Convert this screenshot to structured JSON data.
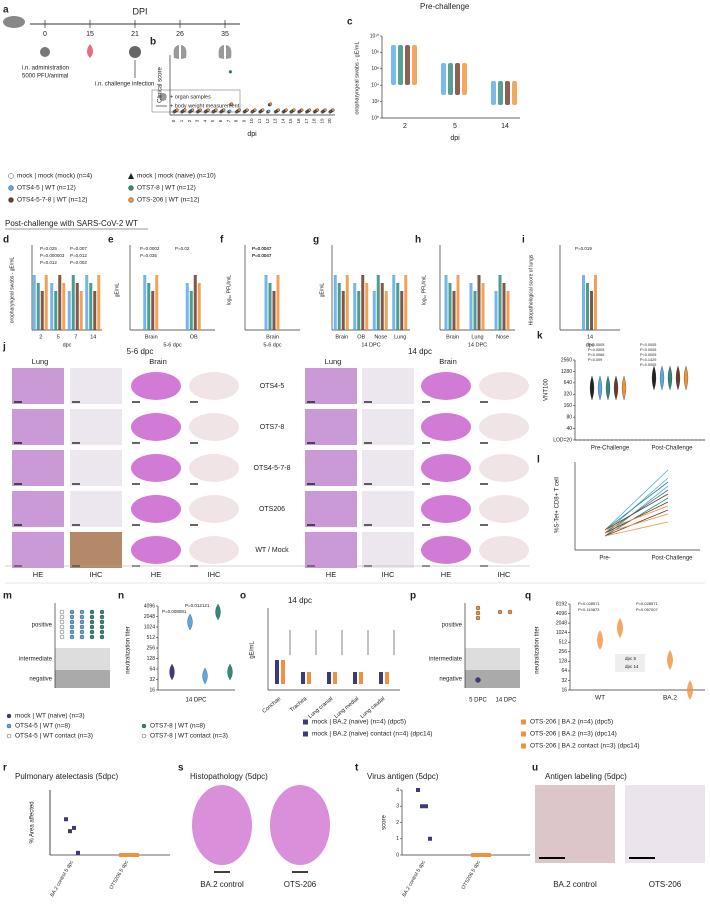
{
  "panels": {
    "a": {
      "letter": "a",
      "axis_title": "DPI",
      "timepoints": [
        "0",
        "15",
        "21",
        "26",
        "35"
      ],
      "notes": [
        "i.n. administration",
        "5000 PFU/animal",
        "i.n. challenge infection"
      ],
      "key": [
        "+ organ samples",
        "+ body weight measurement"
      ],
      "groups": [
        {
          "name": "mock | mock (mock) (n=4)",
          "color": "#ffffff"
        },
        {
          "name": "mock | mock (naive) (n=10)",
          "color": "#222222"
        },
        {
          "name": "OTS4-5 | WT (n=12)",
          "color": "#5aa9e6"
        },
        {
          "name": "OTS7-8 | WT (n=12)",
          "color": "#2e8b7a"
        },
        {
          "name": "OTS4-5-7-8 | WT (n=12)",
          "color": "#6b3a2a"
        },
        {
          "name": "OTS-206 | WT (n=12)",
          "color": "#f0923b"
        }
      ]
    },
    "section_titles": [
      "Pre-challenge",
      "Post-challenge with SARS-CoV-2 WT"
    ],
    "b": {
      "letter": "b",
      "y_title": "Clinical score",
      "x_title": "dpi",
      "xticks": [
        0,
        1,
        2,
        3,
        4,
        5,
        6,
        7,
        8,
        9,
        10,
        11,
        12,
        13,
        14,
        15,
        16,
        17,
        18,
        19,
        20
      ]
    },
    "c": {
      "letter": "c",
      "y_title": "oropharyngeal swabs - gE/mL",
      "x_title": "dpi",
      "categories": [
        "2",
        "5",
        "14"
      ],
      "log": true,
      "ylim": [
        1,
        10000000000
      ],
      "yticks": [
        {
          "value": 10000000000,
          "label": "10¹⁰"
        },
        {
          "value": 100000000,
          "label": "10⁸"
        },
        {
          "value": 1000000,
          "label": "10⁶"
        },
        {
          "value": 10000,
          "label": "10⁴"
        },
        {
          "value": 100,
          "label": "10²"
        },
        {
          "value": 1,
          "label": "10⁰"
        }
      ]
    },
    "d": {
      "letter": "d",
      "y_title": "oropharyngeal swabs - gE/mL",
      "x_title": "dpc",
      "categories": [
        "2",
        "5",
        "7",
        "14"
      ],
      "pvalues": [
        "P=0.025",
        "P=0.007",
        "P=0.000003",
        "P=0.012",
        "P=0.012",
        "P=0.002"
      ]
    },
    "e": {
      "letter": "e",
      "y_title": "gE/mL",
      "x_title": "5-6 dpc",
      "categories": [
        "Brain",
        "OB"
      ],
      "pvalues": [
        "P=0.0002",
        "P=0.02",
        "P=0.035"
      ]
    },
    "f": {
      "letter": "f",
      "y_title": "log₁₀ PFU/mL",
      "x_title": "5-6 dpc",
      "categories": [
        "Brain"
      ],
      "pvalues": [
        "P=0.0047",
        "P=0.0047",
        "P=0.0047",
        "P=0.0047"
      ]
    },
    "g": {
      "letter": "g",
      "y_title": "gE/mL",
      "x_title": "14 DPC",
      "categories": [
        "Brain",
        "OB",
        "Nose",
        "Lung"
      ]
    },
    "h": {
      "letter": "h",
      "y_title": "log₁₀ PFU/mL",
      "x_title": "14 DPC",
      "categories": [
        "Brain",
        "Lung",
        "Nose"
      ]
    },
    "i": {
      "letter": "i",
      "y_title": "Histopathological score of lungs",
      "x_title": "dpc",
      "categories": [
        "14"
      ],
      "pvalues": [
        "P=0.019"
      ]
    },
    "j": {
      "letter": "j",
      "times": [
        "5-6 dpc",
        "14 dpc"
      ],
      "tissues": [
        "Lung",
        "Brain",
        "Lung",
        "Brain"
      ],
      "rows": [
        "OTS4-5",
        "OTS7-8",
        "OTS4-5-7-8",
        "OTS206",
        "WT / Mock"
      ],
      "stains": [
        "HE",
        "IHC",
        "HE",
        "IHC",
        "HE",
        "IHC",
        "HE",
        "IHC"
      ]
    },
    "k": {
      "letter": "k",
      "y_title": "VNT100",
      "categories": [
        "Pre-Challenge",
        "Post-Challenge"
      ],
      "log": true,
      "ylim": [
        20,
        2560
      ],
      "yticks": [
        2560,
        1280,
        640,
        320,
        160,
        80,
        40,
        {
          "value": 20,
          "label": "LOD=20"
        }
      ],
      "pvalues": [
        "P=0.0005",
        "P=0.0005",
        "P=0.0066",
        "P=0.009",
        "P=0.0005",
        "P=0.0005",
        "P=0.0005",
        "P=0.1429",
        "P=0.0005"
      ]
    },
    "l": {
      "letter": "l",
      "y_title": "%S-Tet+ CD8+ T cell",
      "categories": [
        "Pre-",
        "Post-Challenge"
      ]
    },
    "m": {
      "letter": "m",
      "levels": [
        "positive",
        "intermediate",
        "negative"
      ]
    },
    "n": {
      "letter": "n",
      "y_title": "neutralization titer",
      "x_title": "14 DPC",
      "log": true,
      "ylim": [
        16,
        4096
      ],
      "yticks": [
        4096,
        2048,
        1024,
        512,
        256,
        128,
        64,
        32,
        16
      ],
      "pvalues": [
        "P=0.012121",
        "P=0.008081"
      ]
    },
    "mn_legend": [
      "mock | WT (naive) (n=3)",
      "OTS4-5 | WT (n=8)",
      "OTS4-5 | WT contact (n=3)",
      "OTS7-8 | WT (n=8)",
      "OTS7-8 | WT contact (n=3)"
    ],
    "o": {
      "letter": "o",
      "title": "14 dpc",
      "y_title": "gE/mL",
      "categories": [
        "Conchae",
        "Trachea",
        "Lung cranial",
        "Lung medial",
        "Lung caudal"
      ]
    },
    "p": {
      "letter": "p",
      "levels": [
        "positive",
        "intermediate",
        "negative"
      ],
      "categories": [
        "5 DPC",
        "14 DPC"
      ]
    },
    "q": {
      "letter": "q",
      "y_title": "neutralization titer",
      "categories": [
        "WT",
        "BA.2"
      ],
      "inset": [
        "dpc 5",
        "dpc 14"
      ],
      "log": true,
      "ylim": [
        16,
        8192
      ],
      "yticks": [
        8192,
        4096,
        2048,
        1024,
        512,
        256,
        128,
        64,
        32,
        16
      ],
      "pvalues": [
        "P=0.028571",
        "P=0.119873",
        "P=0.028571",
        "P=0.057007"
      ]
    },
    "oq_legend": [
      "mock | BA.2 (naive) (n=4) (dpc5)",
      "mock | BA.2 (naive) contact (n=4) (dpc14)",
      "OTS-206 | BA.2 (n=4) (dpc5)",
      "OTS-206 | BA.2 (n=3) (dpc14)",
      "OTS-206 | BA.2 contact (n=3) (dpc14)"
    ],
    "r": {
      "letter": "r",
      "title": "Pulmonary atelectasis (5dpc)",
      "y_title": "% Area affected",
      "categories": [
        "BA.2 control 5 dpc",
        "OTS206 5 dpc"
      ],
      "ylim": [
        0,
        60
      ],
      "series": [
        {
          "color": "#3d3a7a",
          "values": [
            33,
            22,
            25,
            2
          ]
        },
        {
          "color": "#f0923b",
          "values": [
            0,
            0,
            0,
            0,
            0
          ]
        }
      ]
    },
    "s": {
      "letter": "s",
      "title": "Histopathology (5dpc)",
      "labels": [
        "BA.2 control",
        "OTS-206"
      ]
    },
    "t": {
      "letter": "t",
      "title": "Virus antigen (5dpc)",
      "y_title": "score",
      "categories": [
        "BA.2 control 5 dpc",
        "OTS206 5 dpc"
      ],
      "ylim": [
        0,
        4
      ],
      "yticks": [
        0,
        1,
        2,
        3,
        4
      ],
      "series": [
        {
          "color": "#3d3a7a",
          "values": [
            4,
            3,
            3,
            1
          ]
        },
        {
          "color": "#f0923b",
          "values": [
            0,
            0,
            0,
            0,
            0
          ]
        }
      ]
    },
    "u": {
      "letter": "u",
      "title": "Antigen labeling (5dpc)",
      "labels": [
        "BA.2 control",
        "OTS-206"
      ]
    }
  }
}
